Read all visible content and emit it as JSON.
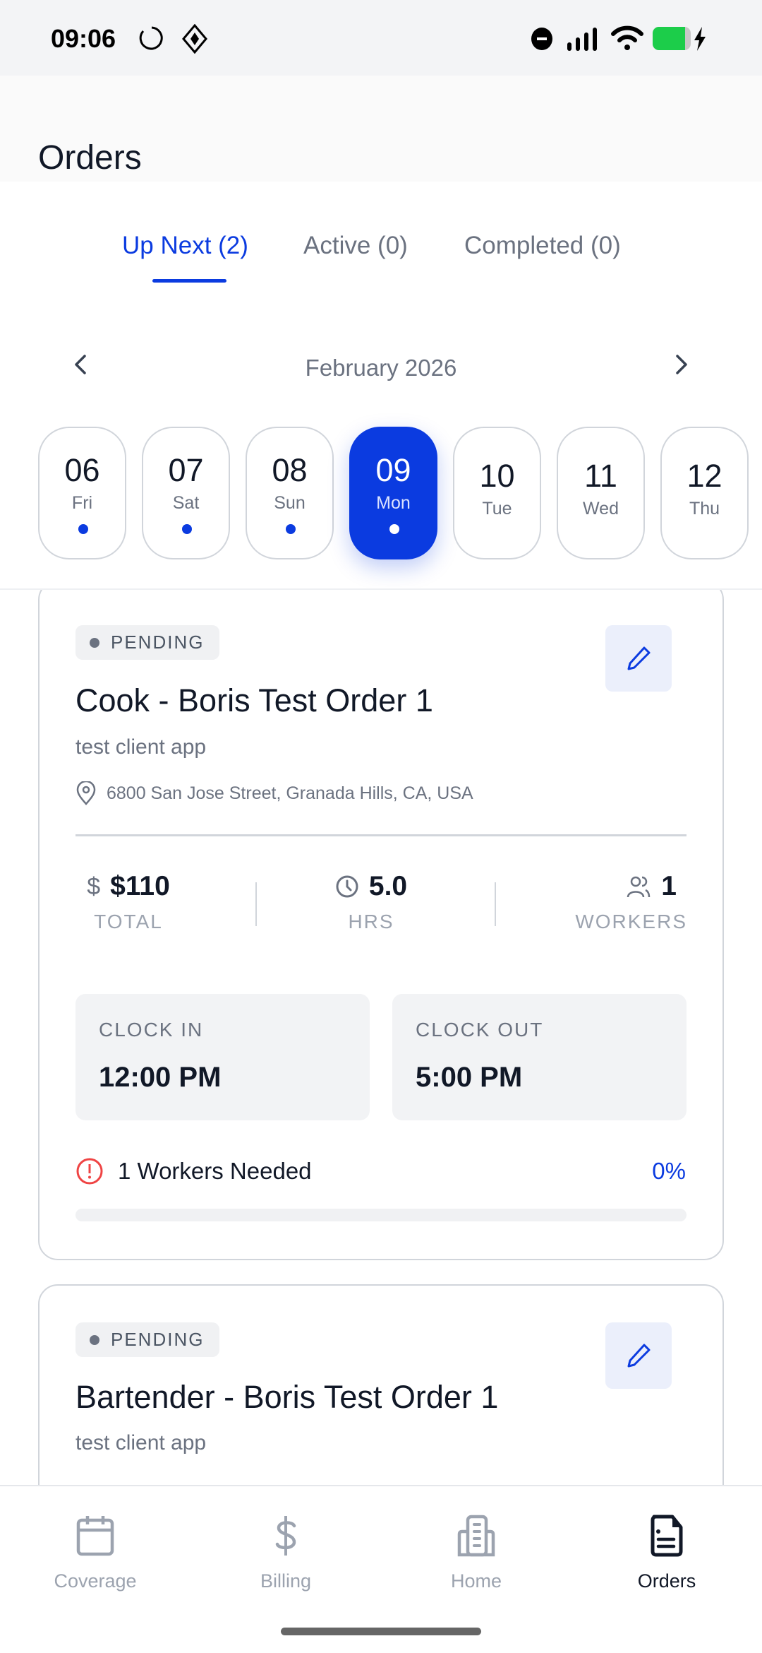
{
  "status_bar": {
    "time": "09:06",
    "battery_color": "#1ccd4a"
  },
  "header": {
    "title": "Orders"
  },
  "tabs": [
    {
      "label": "Up Next (2)",
      "active": true
    },
    {
      "label": "Active (0)"
    },
    {
      "label": "Completed (0)"
    }
  ],
  "calendar": {
    "month": "February 2026",
    "days": [
      {
        "num": "06",
        "dow": "Fri",
        "has_orders": true
      },
      {
        "num": "07",
        "dow": "Sat",
        "has_orders": true
      },
      {
        "num": "08",
        "dow": "Sun",
        "has_orders": true
      },
      {
        "num": "09",
        "dow": "Mon",
        "has_orders": true,
        "selected": true
      },
      {
        "num": "10",
        "dow": "Tue",
        "has_orders": false
      },
      {
        "num": "11",
        "dow": "Wed",
        "has_orders": false
      },
      {
        "num": "12",
        "dow": "Thu",
        "has_orders": false
      }
    ]
  },
  "orders": [
    {
      "status": "PENDING",
      "title": "Cook - Boris Test Order 1",
      "client": "test client app",
      "address": "6800 San Jose Street, Granada Hills, CA, USA",
      "total": "$110",
      "total_label": "TOTAL",
      "hours": "5.0",
      "hours_label": "HRS",
      "workers": "1",
      "workers_label": "WORKERS",
      "clock_in_label": "CLOCK IN",
      "clock_in": "12:00 PM",
      "clock_out_label": "CLOCK OUT",
      "clock_out": "5:00 PM",
      "needed": "1 Workers Needed",
      "fill_percent_label": "0%",
      "fill_percent": 0
    },
    {
      "status": "PENDING",
      "title": "Bartender - Boris Test Order 1",
      "client": "test client app"
    }
  ],
  "bottom_nav": [
    {
      "label": "Coverage",
      "icon": "calendar-icon"
    },
    {
      "label": "Billing",
      "icon": "dollar-icon"
    },
    {
      "label": "Home",
      "icon": "building-icon"
    },
    {
      "label": "Orders",
      "icon": "document-icon",
      "active": true
    }
  ],
  "colors": {
    "accent": "#0b3be0",
    "alert": "#ef4444"
  }
}
